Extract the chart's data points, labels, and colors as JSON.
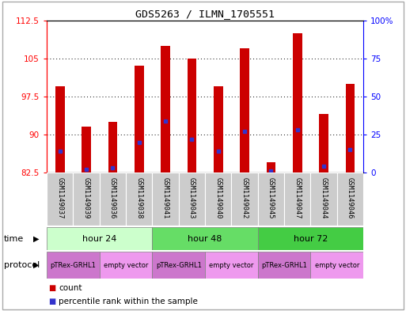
{
  "title": "GDS5263 / ILMN_1705551",
  "samples": [
    "GSM1149037",
    "GSM1149039",
    "GSM1149036",
    "GSM1149038",
    "GSM1149041",
    "GSM1149043",
    "GSM1149040",
    "GSM1149042",
    "GSM1149045",
    "GSM1149047",
    "GSM1149044",
    "GSM1149046"
  ],
  "count_values": [
    99.5,
    91.5,
    92.5,
    103.5,
    107.5,
    105.0,
    99.5,
    107.0,
    84.5,
    110.0,
    94.0,
    100.0
  ],
  "percentile_values": [
    14,
    2,
    3,
    20,
    34,
    22,
    14,
    27,
    1,
    28,
    4,
    15
  ],
  "y_min": 82.5,
  "y_max": 112.5,
  "y_ticks": [
    82.5,
    90,
    97.5,
    105,
    112.5
  ],
  "y2_ticks": [
    0,
    25,
    50,
    75,
    100
  ],
  "bar_color": "#cc0000",
  "marker_color": "#3333cc",
  "bar_width": 0.35,
  "time_groups": [
    {
      "label": "hour 24",
      "start": 0,
      "end": 4,
      "color": "#ccffcc"
    },
    {
      "label": "hour 48",
      "start": 4,
      "end": 8,
      "color": "#66dd66"
    },
    {
      "label": "hour 72",
      "start": 8,
      "end": 12,
      "color": "#44cc44"
    }
  ],
  "protocol_groups": [
    {
      "label": "pTRex-GRHL1",
      "start": 0,
      "end": 2,
      "color": "#cc77cc"
    },
    {
      "label": "empty vector",
      "start": 2,
      "end": 4,
      "color": "#ee99ee"
    },
    {
      "label": "pTRex-GRHL1",
      "start": 4,
      "end": 6,
      "color": "#cc77cc"
    },
    {
      "label": "empty vector",
      "start": 6,
      "end": 8,
      "color": "#ee99ee"
    },
    {
      "label": "pTRex-GRHL1",
      "start": 8,
      "end": 10,
      "color": "#cc77cc"
    },
    {
      "label": "empty vector",
      "start": 10,
      "end": 12,
      "color": "#ee99ee"
    }
  ],
  "time_label": "time",
  "protocol_label": "protocol",
  "legend_count": "count",
  "legend_percentile": "percentile rank within the sample",
  "bg_color": "#ffffff",
  "sample_bg": "#cccccc",
  "fig_border_color": "#aaaaaa"
}
